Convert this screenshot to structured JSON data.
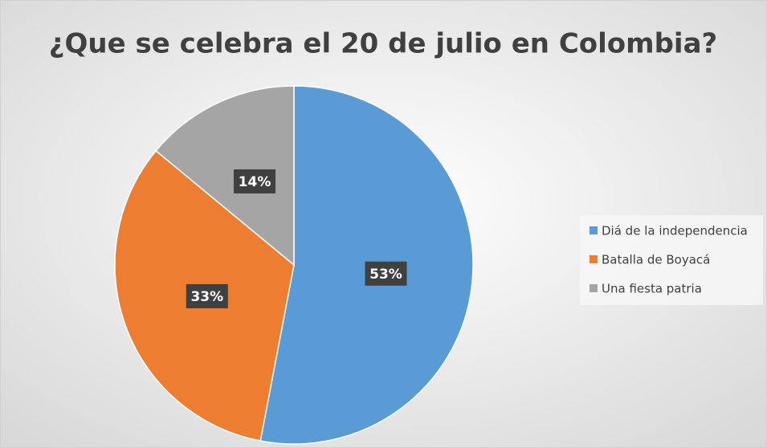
{
  "chart_data": {
    "type": "pie",
    "title": "¿Que se celebra el 20 de julio en Colombia?",
    "categories": [
      "Diá de la independencia",
      "Batalla de Boyacá",
      "Una fiesta patria"
    ],
    "values": [
      53,
      33,
      14
    ],
    "value_labels": [
      "53%",
      "33%",
      "14%"
    ],
    "colors": [
      "#5b9bd5",
      "#ed7d31",
      "#a5a5a5"
    ],
    "legend": "right"
  }
}
